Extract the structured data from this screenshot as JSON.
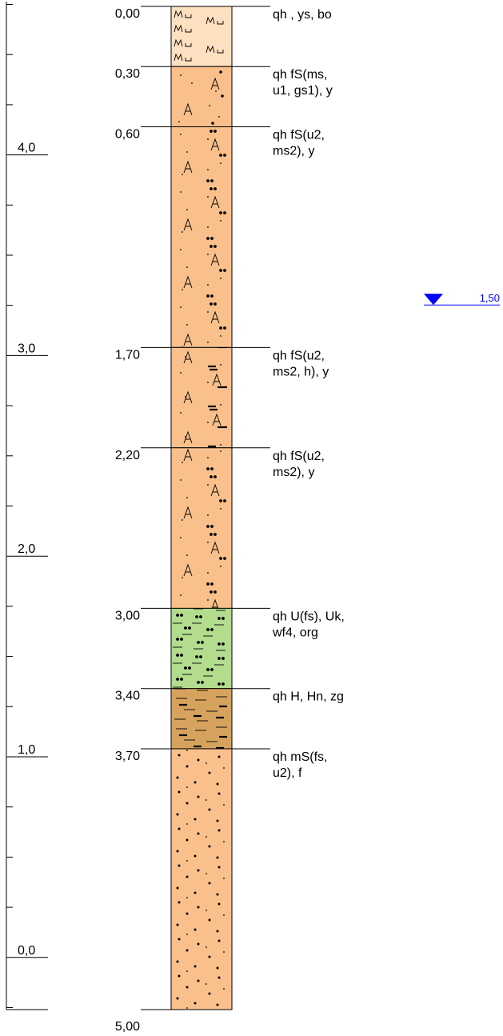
{
  "scale": {
    "labels": [
      {
        "value": 4.0,
        "text": "4,0"
      },
      {
        "value": 3.0,
        "text": "3,0"
      },
      {
        "value": 2.0,
        "text": "2,0"
      },
      {
        "value": 1.0,
        "text": "1,0"
      },
      {
        "value": 0.0,
        "text": "0,0"
      }
    ]
  },
  "layers": [
    {
      "top": 0.0,
      "bottom": 0.3,
      "depth_text": "0,00",
      "desc": [
        "qh  , ys, bo"
      ],
      "color": "#fde0c0",
      "pattern": "topsoil"
    },
    {
      "top": 0.3,
      "bottom": 0.6,
      "depth_text": "0,30",
      "desc": [
        "qh  fS(ms,",
        "u1, gs1), y"
      ],
      "color": "#f9c08c",
      "pattern": "sand_a"
    },
    {
      "top": 0.6,
      "bottom": 1.7,
      "depth_text": "0,60",
      "desc": [
        "qh  fS(u2,",
        "ms2), y"
      ],
      "color": "#f9c08c",
      "pattern": "sand_silt"
    },
    {
      "top": 1.7,
      "bottom": 2.2,
      "depth_text": "1,70",
      "desc": [
        "qh  fS(u2,",
        "ms2, h), y"
      ],
      "color": "#f9c08c",
      "pattern": "sand_humus"
    },
    {
      "top": 2.2,
      "bottom": 3.0,
      "depth_text": "2,20",
      "desc": [
        "qh  fS(u2,",
        "ms2), y"
      ],
      "color": "#f9c08c",
      "pattern": "sand_silt"
    },
    {
      "top": 3.0,
      "bottom": 3.4,
      "depth_text": "3,00",
      "desc": [
        "qh  U(fs), Uk,",
        "wf4, org"
      ],
      "color": "#b3dc8e",
      "pattern": "silt"
    },
    {
      "top": 3.4,
      "bottom": 3.7,
      "depth_text": "3,40",
      "desc": [
        "qh  H, Hn, zg"
      ],
      "color": "#d6a35e",
      "pattern": "peat"
    },
    {
      "top": 3.7,
      "bottom": 5.0,
      "depth_text": "3,70",
      "desc": [
        "qh  mS(fs,",
        "u2), f"
      ],
      "color": "#f9c08c",
      "pattern": "medium_sand"
    }
  ],
  "final_depth_text": "5,00",
  "water_level": {
    "depth": 1.5,
    "text": "1,50",
    "color": "#0000ff"
  }
}
